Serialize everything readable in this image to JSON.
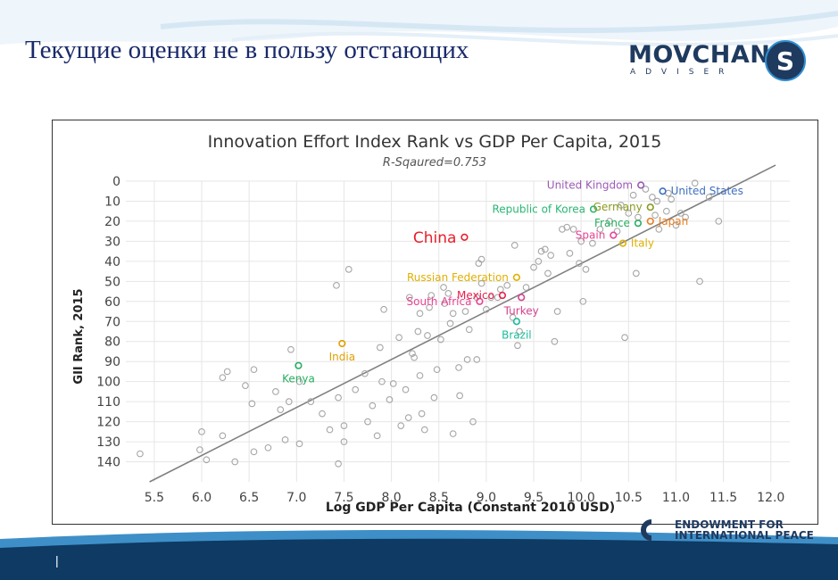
{
  "slide": {
    "title": "Текущие оценки не в пользу отстающих",
    "page_number": "|"
  },
  "logo": {
    "main": "MOVCHAN",
    "sub": "ADVISER",
    "mark_letter": "S"
  },
  "endowment": {
    "line1": "ENDOWMENT FOR",
    "line2": "INTERNATIONAL PEACE"
  },
  "colors": {
    "title_blue": "#1a2a6a",
    "grid": "#e6e6e6",
    "point_gray": "#a6a6a6",
    "trend": "#808080",
    "footer_dark": "#0e3a63",
    "footer_light": "#3e8fc8"
  },
  "chart_data": {
    "type": "scatter",
    "title": "Innovation Effort Index Rank vs GDP Per Capita, 2015",
    "subtitle": "R-Sqaured=0.753",
    "xlabel": "Log GDP Per Capita (Constant 2010 USD)",
    "ylabel": "GII Rank, 2015",
    "xlim": [
      5.2,
      12.2
    ],
    "ylim": [
      0,
      150
    ],
    "y_reversed": true,
    "grid": true,
    "xticks": [
      "5.5",
      "6.0",
      "6.5",
      "7.0",
      "7.5",
      "8.0",
      "8.5",
      "9.0",
      "9.5",
      "10.0",
      "10.5",
      "11.0",
      "11.5",
      "12.0"
    ],
    "yticks": [
      "0",
      "10",
      "20",
      "30",
      "40",
      "50",
      "60",
      "70",
      "80",
      "90",
      "100",
      "110",
      "120",
      "130",
      "140"
    ],
    "trendline": [
      [
        5.45,
        150
      ],
      [
        12.05,
        -8
      ]
    ],
    "labeled_points": [
      {
        "name": "United Kingdom",
        "x": 10.63,
        "y": 2,
        "color": "#9b59b6",
        "anchor": "left"
      },
      {
        "name": "United States",
        "x": 10.86,
        "y": 5,
        "color": "#3f6fc0",
        "anchor": "right"
      },
      {
        "name": "Germany",
        "x": 10.73,
        "y": 13,
        "color": "#8a9a20",
        "anchor": "left"
      },
      {
        "name": "Republic of Korea",
        "x": 10.13,
        "y": 14,
        "color": "#2bb673",
        "anchor": "left"
      },
      {
        "name": "Japan",
        "x": 10.73,
        "y": 20,
        "color": "#e67e22",
        "anchor": "right"
      },
      {
        "name": "France",
        "x": 10.6,
        "y": 21,
        "color": "#27ae60",
        "anchor": "left"
      },
      {
        "name": "Spain",
        "x": 10.34,
        "y": 27,
        "color": "#e84393",
        "anchor": "left"
      },
      {
        "name": "China",
        "x": 8.77,
        "y": 28,
        "color": "#e8202a",
        "anchor": "left"
      },
      {
        "name": "Italy",
        "x": 10.44,
        "y": 31,
        "color": "#e0b000",
        "anchor": "right"
      },
      {
        "name": "Russian Federation",
        "x": 9.32,
        "y": 48,
        "color": "#e0b000",
        "anchor": "left"
      },
      {
        "name": "Mexico",
        "x": 9.17,
        "y": 57,
        "color": "#e8204a",
        "anchor": "left"
      },
      {
        "name": "Turkey",
        "x": 9.37,
        "y": 58,
        "color": "#d4418e",
        "anchor": "below"
      },
      {
        "name": "South Africa",
        "x": 8.93,
        "y": 60,
        "color": "#e84393",
        "anchor": "left"
      },
      {
        "name": "Brazil",
        "x": 9.32,
        "y": 70,
        "color": "#1abc9c",
        "anchor": "below"
      },
      {
        "name": "India",
        "x": 7.48,
        "y": 81,
        "color": "#e0a000",
        "anchor": "below"
      },
      {
        "name": "Kenya",
        "x": 7.02,
        "y": 92,
        "color": "#27ae60",
        "anchor": "below"
      }
    ],
    "points": [
      [
        5.35,
        136
      ],
      [
        6.0,
        125
      ],
      [
        5.98,
        134
      ],
      [
        6.05,
        139
      ],
      [
        6.22,
        127
      ],
      [
        6.22,
        98
      ],
      [
        6.27,
        95
      ],
      [
        6.35,
        140
      ],
      [
        6.46,
        102
      ],
      [
        6.53,
        111
      ],
      [
        6.55,
        94
      ],
      [
        6.55,
        135
      ],
      [
        6.7,
        133
      ],
      [
        6.78,
        105
      ],
      [
        6.83,
        114
      ],
      [
        6.88,
        129
      ],
      [
        6.92,
        110
      ],
      [
        6.94,
        84
      ],
      [
        7.03,
        131
      ],
      [
        7.03,
        100
      ],
      [
        7.15,
        110
      ],
      [
        7.27,
        116
      ],
      [
        7.35,
        124
      ],
      [
        7.42,
        52
      ],
      [
        7.44,
        108
      ],
      [
        7.44,
        141
      ],
      [
        7.5,
        122
      ],
      [
        7.5,
        130
      ],
      [
        7.55,
        44
      ],
      [
        7.62,
        104
      ],
      [
        7.75,
        120
      ],
      [
        7.72,
        96
      ],
      [
        7.8,
        112
      ],
      [
        7.85,
        127
      ],
      [
        7.88,
        83
      ],
      [
        7.9,
        100
      ],
      [
        7.92,
        64
      ],
      [
        7.98,
        109
      ],
      [
        8.02,
        101
      ],
      [
        8.08,
        78
      ],
      [
        8.1,
        122
      ],
      [
        8.15,
        104
      ],
      [
        8.18,
        118
      ],
      [
        8.19,
        58
      ],
      [
        8.22,
        86
      ],
      [
        8.24,
        88
      ],
      [
        8.28,
        75
      ],
      [
        8.3,
        66
      ],
      [
        8.3,
        97
      ],
      [
        8.32,
        116
      ],
      [
        8.35,
        124
      ],
      [
        8.38,
        77
      ],
      [
        8.4,
        63
      ],
      [
        8.42,
        57
      ],
      [
        8.45,
        108
      ],
      [
        8.48,
        94
      ],
      [
        8.52,
        79
      ],
      [
        8.55,
        53
      ],
      [
        8.56,
        61
      ],
      [
        8.6,
        56
      ],
      [
        8.62,
        71
      ],
      [
        8.65,
        66
      ],
      [
        8.65,
        126
      ],
      [
        8.71,
        93
      ],
      [
        8.72,
        107
      ],
      [
        8.78,
        65
      ],
      [
        8.8,
        89
      ],
      [
        8.82,
        74
      ],
      [
        8.86,
        120
      ],
      [
        8.9,
        58
      ],
      [
        8.9,
        89
      ],
      [
        8.92,
        41
      ],
      [
        8.95,
        39
      ],
      [
        8.95,
        51
      ],
      [
        9.0,
        64
      ],
      [
        9.05,
        58
      ],
      [
        9.12,
        58
      ],
      [
        9.15,
        54
      ],
      [
        9.22,
        52
      ],
      [
        9.28,
        68
      ],
      [
        9.3,
        32
      ],
      [
        9.33,
        82
      ],
      [
        9.35,
        75
      ],
      [
        9.42,
        53
      ],
      [
        9.5,
        43
      ],
      [
        9.55,
        40
      ],
      [
        9.58,
        35
      ],
      [
        9.62,
        34
      ],
      [
        9.65,
        46
      ],
      [
        9.68,
        37
      ],
      [
        9.72,
        80
      ],
      [
        9.75,
        65
      ],
      [
        9.8,
        24
      ],
      [
        9.85,
        23
      ],
      [
        9.88,
        36
      ],
      [
        9.92,
        24
      ],
      [
        9.98,
        41
      ],
      [
        10.0,
        30
      ],
      [
        10.02,
        60
      ],
      [
        10.05,
        44
      ],
      [
        10.12,
        31
      ],
      [
        10.2,
        24
      ],
      [
        10.3,
        20
      ],
      [
        10.38,
        25
      ],
      [
        10.42,
        12
      ],
      [
        10.46,
        78
      ],
      [
        10.5,
        16
      ],
      [
        10.55,
        7
      ],
      [
        10.58,
        46
      ],
      [
        10.6,
        18
      ],
      [
        10.68,
        4
      ],
      [
        10.75,
        8
      ],
      [
        10.78,
        17
      ],
      [
        10.8,
        10
      ],
      [
        10.82,
        24
      ],
      [
        10.9,
        15
      ],
      [
        10.92,
        6
      ],
      [
        10.95,
        9
      ],
      [
        11.0,
        22
      ],
      [
        11.05,
        16
      ],
      [
        11.1,
        18
      ],
      [
        11.2,
        1
      ],
      [
        11.25,
        50
      ],
      [
        11.35,
        8
      ],
      [
        11.45,
        20
      ]
    ]
  }
}
